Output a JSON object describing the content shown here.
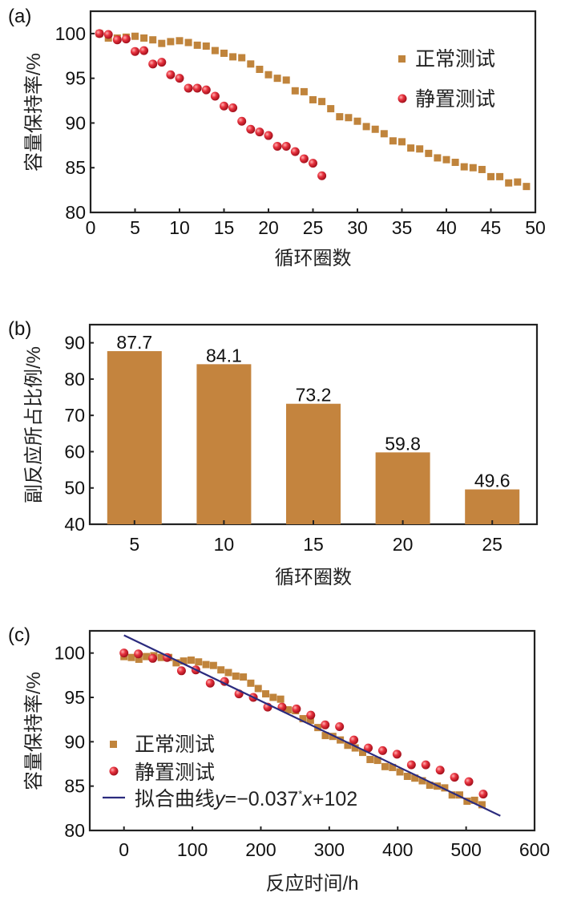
{
  "chart_data": [
    {
      "panel_label": "(a)",
      "type": "scatter",
      "xlabel": "循环圈数",
      "ylabel": "容量保持率/%",
      "xlim": [
        0,
        50
      ],
      "ylim": [
        80,
        102.5
      ],
      "xticks": [
        0,
        5,
        10,
        15,
        20,
        25,
        30,
        35,
        40,
        45,
        50
      ],
      "yticks": [
        80,
        85,
        90,
        95,
        100
      ],
      "legend_position": "top-right",
      "colors": {
        "normal": "#c0843c",
        "rest": "#e0303c"
      },
      "series": [
        {
          "name": "正常测试",
          "marker": "square",
          "x": [
            1,
            2,
            3,
            4,
            5,
            6,
            7,
            8,
            9,
            10,
            11,
            12,
            13,
            14,
            15,
            16,
            17,
            18,
            19,
            20,
            21,
            22,
            23,
            24,
            25,
            26,
            27,
            28,
            29,
            30,
            31,
            32,
            33,
            34,
            35,
            36,
            37,
            38,
            39,
            40,
            41,
            42,
            43,
            44,
            45,
            46,
            47,
            48,
            49
          ],
          "y": [
            100,
            99.5,
            99.5,
            99.6,
            99.7,
            99.5,
            99.3,
            98.9,
            99.1,
            99.2,
            99.0,
            98.7,
            98.6,
            98.1,
            97.8,
            97.4,
            97.3,
            96.6,
            96.0,
            95.4,
            95.0,
            94.8,
            93.6,
            93.5,
            92.6,
            92.4,
            91.6,
            90.7,
            90.6,
            90.2,
            89.6,
            89.3,
            88.8,
            88.0,
            87.9,
            87.2,
            87.1,
            86.6,
            86.1,
            85.9,
            85.6,
            85.1,
            85.0,
            84.8,
            84.0,
            84.0,
            83.3,
            83.4,
            82.9
          ]
        },
        {
          "name": "静置测试",
          "marker": "circle",
          "x": [
            1,
            2,
            3,
            4,
            5,
            6,
            7,
            8,
            9,
            10,
            11,
            12,
            13,
            14,
            15,
            16,
            17,
            18,
            19,
            20,
            21,
            22,
            23,
            24,
            25,
            26
          ],
          "y": [
            100,
            99.9,
            99.3,
            99.4,
            98.0,
            98.1,
            96.6,
            96.8,
            95.4,
            95.0,
            93.9,
            93.9,
            93.7,
            93.0,
            91.9,
            91.7,
            90.2,
            89.3,
            89.0,
            88.6,
            87.4,
            87.4,
            86.8,
            86.0,
            85.5,
            84.1
          ]
        }
      ]
    },
    {
      "panel_label": "(b)",
      "type": "bar",
      "xlabel": "循环圈数",
      "ylabel": "副反应所占比例/%",
      "categories": [
        "5",
        "10",
        "15",
        "20",
        "25"
      ],
      "values": [
        87.7,
        84.1,
        73.2,
        59.8,
        49.6
      ],
      "value_labels": [
        "87.7",
        "84.1",
        "73.2",
        "59.8",
        "49.6"
      ],
      "ylim": [
        40,
        95
      ],
      "yticks": [
        40,
        50,
        60,
        70,
        80,
        90
      ],
      "colors": {
        "bar": "#c4843e"
      }
    },
    {
      "panel_label": "(c)",
      "type": "scatter",
      "xlabel": "反应时间/h",
      "ylabel": "容量保持率/%",
      "xlim": [
        -50,
        600
      ],
      "ylim": [
        80,
        102.5
      ],
      "xticks": [
        0,
        100,
        200,
        300,
        400,
        500,
        600
      ],
      "yticks": [
        80,
        85,
        90,
        95,
        100
      ],
      "legend_position": "bottom-left",
      "colors": {
        "normal": "#c0843c",
        "rest": "#e0303c",
        "fit": "#2b2b7e"
      },
      "series": [
        {
          "name": "正常测试",
          "marker": "square",
          "x": [
            0,
            10.9,
            21.8,
            32.7,
            43.6,
            54.5,
            65.4,
            76.3,
            87.2,
            98.1,
            109,
            119.9,
            130.8,
            141.7,
            152.6,
            163.5,
            174.4,
            185.3,
            196.2,
            207.1,
            218,
            228.9,
            239.8,
            250.7,
            261.6,
            272.5,
            283.4,
            294.3,
            305.2,
            316.1,
            327,
            337.9,
            348.8,
            359.7,
            370.6,
            381.5,
            392.4,
            403.3,
            414.2,
            425.1,
            436,
            446.9,
            457.8,
            468.7,
            479.6,
            490.5,
            501.4,
            512.3,
            523.2
          ],
          "y": [
            99.6,
            99.5,
            99.3,
            99.6,
            99.7,
            99.5,
            99.5,
            98.9,
            99.1,
            99.2,
            99.0,
            98.7,
            98.6,
            98.1,
            97.8,
            97.4,
            97.3,
            96.6,
            96.0,
            95.4,
            95.0,
            94.8,
            93.6,
            93.5,
            92.6,
            92.4,
            91.6,
            90.7,
            90.6,
            90.2,
            89.6,
            89.3,
            88.8,
            88.0,
            87.9,
            87.2,
            87.1,
            86.6,
            86.1,
            85.9,
            85.6,
            85.1,
            85.0,
            84.8,
            84.0,
            84.0,
            83.3,
            83.4,
            82.9
          ]
        },
        {
          "name": "静置测试",
          "marker": "circle",
          "x": [
            0,
            21,
            42,
            63,
            84,
            105,
            126,
            147,
            168,
            189,
            210,
            231,
            252,
            273,
            294,
            315,
            336,
            357,
            378,
            399,
            420,
            441,
            462,
            483,
            504,
            525
          ],
          "y": [
            100,
            99.9,
            99.4,
            99.5,
            98.0,
            98.1,
            96.6,
            96.8,
            95.4,
            95.0,
            93.9,
            93.9,
            93.7,
            93.0,
            91.9,
            91.7,
            90.2,
            89.3,
            89.0,
            88.6,
            87.4,
            87.4,
            86.8,
            86.0,
            85.5,
            84.1
          ]
        },
        {
          "name": "拟合曲线",
          "type": "line",
          "slope": -0.037,
          "intercept": 102,
          "x_range": [
            0,
            550
          ],
          "equation_label": "拟合曲线",
          "equation": {
            "y": "y",
            "eq": "=−0.037",
            "star": "*",
            "x": "x",
            "rest": "+102"
          }
        }
      ]
    }
  ]
}
